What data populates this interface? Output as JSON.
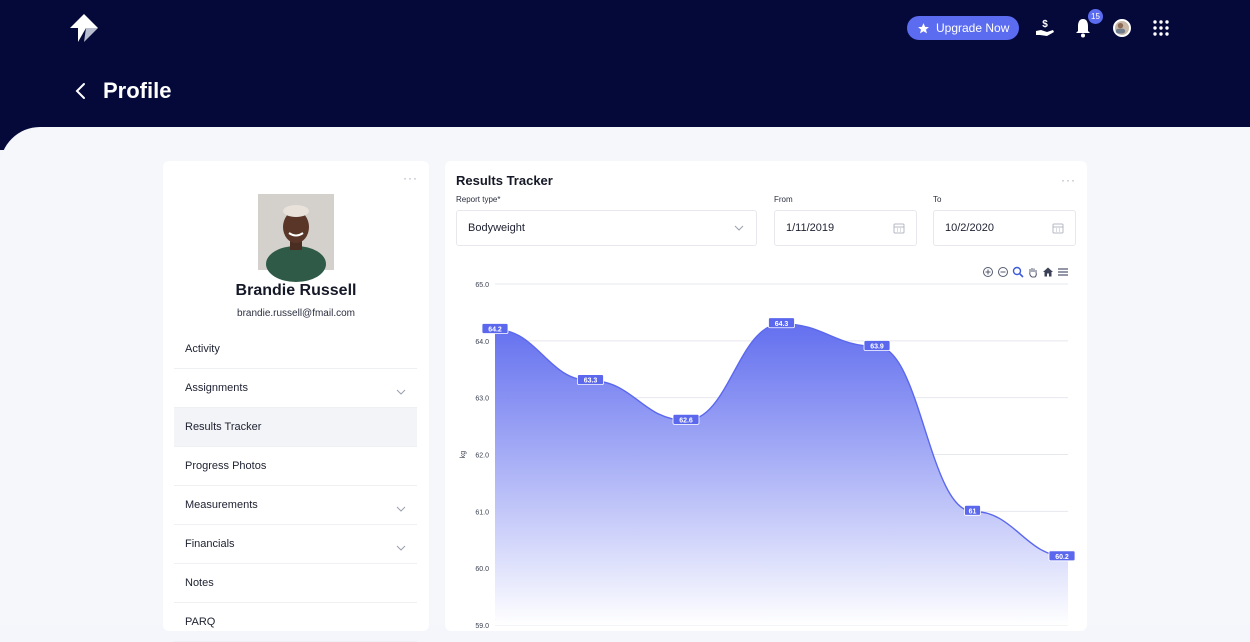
{
  "header": {
    "title": "Profile",
    "upgrade_label": "Upgrade Now",
    "notification_count": "15"
  },
  "profile": {
    "name": "Brandie Russell",
    "email": "brandie.russell@fmail.com",
    "menu": [
      {
        "label": "Activity",
        "chevron": false
      },
      {
        "label": "Assignments",
        "chevron": true
      },
      {
        "label": "Results Tracker",
        "chevron": false,
        "active": true
      },
      {
        "label": "Progress Photos",
        "chevron": false
      },
      {
        "label": "Measurements",
        "chevron": true
      },
      {
        "label": "Financials",
        "chevron": true
      },
      {
        "label": "Notes",
        "chevron": false
      },
      {
        "label": "PARQ",
        "chevron": false
      }
    ]
  },
  "results": {
    "title": "Results Tracker",
    "report_type_label": "Report type*",
    "report_type_value": "Bodyweight",
    "from_label": "From",
    "from_value": "1/11/2019",
    "to_label": "To",
    "to_value": "10/2/2020"
  },
  "chart_data": {
    "type": "area",
    "ylabel": "kg",
    "ylim": [
      59.0,
      65.0
    ],
    "yticks": [
      "65.0",
      "64.0",
      "63.0",
      "62.0",
      "61.0",
      "60.0",
      "59.0"
    ],
    "grid": true,
    "series": [
      {
        "values": [
          64.2,
          63.3,
          62.6,
          64.3,
          63.9,
          61,
          60.2
        ],
        "labels": [
          "64.2",
          "63.3",
          "62.6",
          "64.3",
          "63.9",
          "61",
          "60.2"
        ]
      }
    ],
    "colors": {
      "line": "#5b68ee",
      "fill_top": "#5b68ee",
      "fill_bottom": "#ffffff"
    }
  }
}
